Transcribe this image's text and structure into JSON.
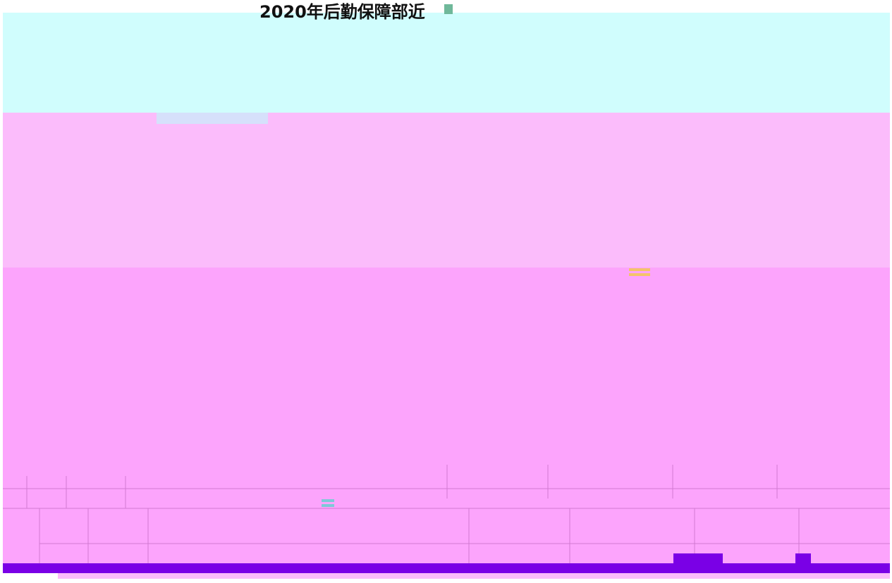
{
  "header": {
    "title": "2020年后勤保障部近"
  }
}
